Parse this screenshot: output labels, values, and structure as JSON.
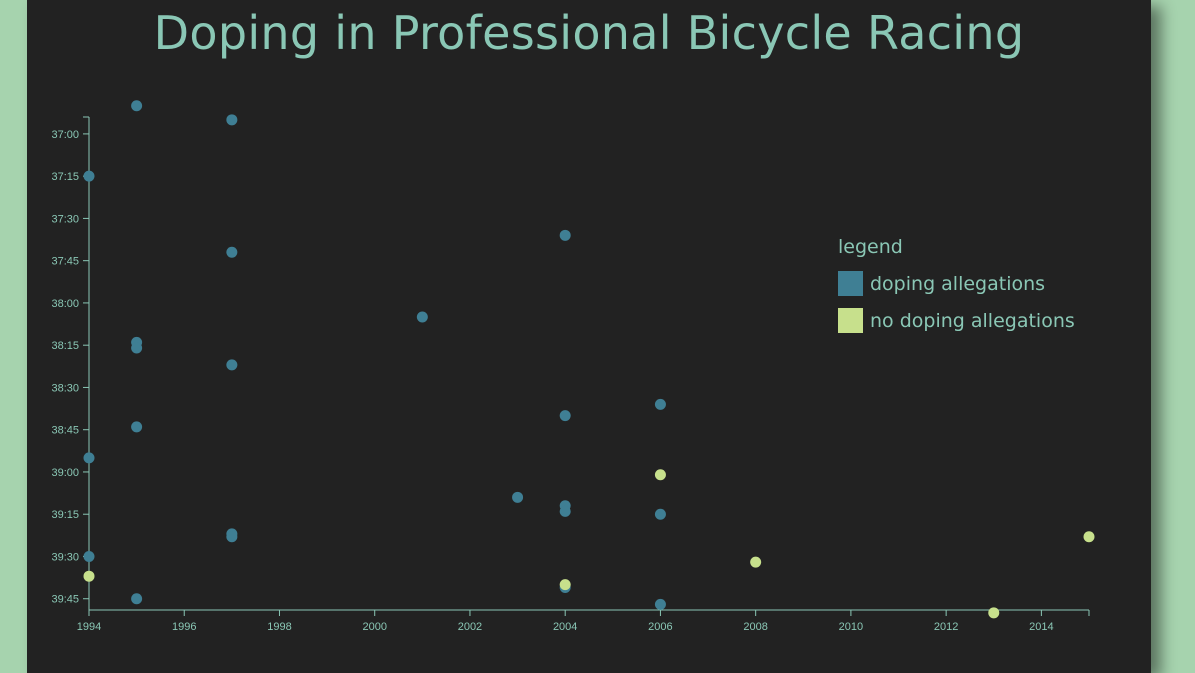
{
  "chart_data": {
    "type": "scatter",
    "title": "Doping in Professional Bicycle Racing",
    "xlabel": "",
    "ylabel": "",
    "xlim": [
      1994,
      2015
    ],
    "ylim": [
      "36:54",
      "39:49"
    ],
    "x_ticks": [
      "1994",
      "1996",
      "1998",
      "2000",
      "2002",
      "2004",
      "2006",
      "2008",
      "2010",
      "2012",
      "2014"
    ],
    "y_ticks": [
      "37:00",
      "37:15",
      "37:30",
      "37:45",
      "38:00",
      "38:15",
      "38:30",
      "38:45",
      "39:00",
      "39:15",
      "39:30",
      "39:45"
    ],
    "colors": {
      "doping": "#3f7f94",
      "no_doping": "#c7e08c"
    },
    "legend": {
      "title": "legend",
      "position": "right",
      "items": [
        {
          "label": "doping allegations",
          "color": "#3f7f94"
        },
        {
          "label": "no doping allegations",
          "color": "#c7e08c"
        }
      ]
    },
    "series": [
      {
        "name": "doping allegations",
        "points": [
          {
            "x": 1995,
            "y": "36:50"
          },
          {
            "x": 1997,
            "y": "36:55"
          },
          {
            "x": 1994,
            "y": "37:15"
          },
          {
            "x": 2004,
            "y": "37:36"
          },
          {
            "x": 1997,
            "y": "37:42"
          },
          {
            "x": 2001,
            "y": "38:05"
          },
          {
            "x": 1995,
            "y": "38:14"
          },
          {
            "x": 1995,
            "y": "38:16"
          },
          {
            "x": 1997,
            "y": "38:22"
          },
          {
            "x": 2006,
            "y": "38:36"
          },
          {
            "x": 2004,
            "y": "38:40"
          },
          {
            "x": 1995,
            "y": "38:44"
          },
          {
            "x": 1994,
            "y": "38:55"
          },
          {
            "x": 2003,
            "y": "39:09"
          },
          {
            "x": 2004,
            "y": "39:12"
          },
          {
            "x": 2004,
            "y": "39:14"
          },
          {
            "x": 2006,
            "y": "39:15"
          },
          {
            "x": 1997,
            "y": "39:22"
          },
          {
            "x": 1997,
            "y": "39:23"
          },
          {
            "x": 1994,
            "y": "39:30"
          },
          {
            "x": 2004,
            "y": "39:41"
          },
          {
            "x": 1995,
            "y": "39:45"
          },
          {
            "x": 2006,
            "y": "39:47"
          }
        ]
      },
      {
        "name": "no doping allegations",
        "points": [
          {
            "x": 2006,
            "y": "39:01"
          },
          {
            "x": 2015,
            "y": "39:23"
          },
          {
            "x": 2008,
            "y": "39:32"
          },
          {
            "x": 1994,
            "y": "39:37"
          },
          {
            "x": 2004,
            "y": "39:40"
          },
          {
            "x": 2013,
            "y": "39:50"
          }
        ]
      }
    ]
  }
}
